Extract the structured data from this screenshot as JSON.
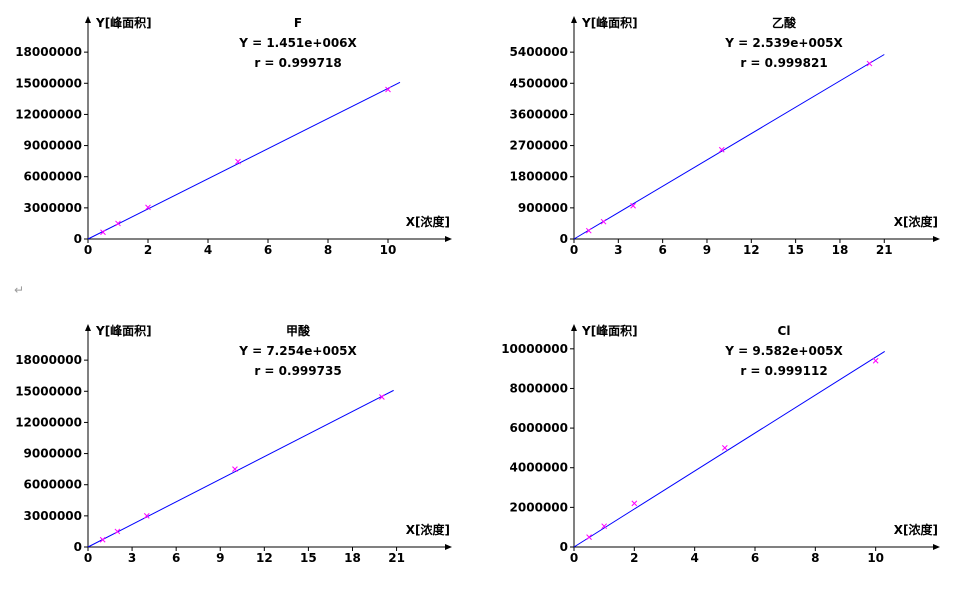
{
  "paragraph_mark": "↵",
  "chart_data": [
    {
      "type": "scatter",
      "title": "F",
      "equation": "Y = 1.451e+006X",
      "r_label": "r = 0.999718",
      "ylabel": "Y[峰面积]",
      "xlabel": "X[浓度]",
      "x_ticks": [
        0,
        2,
        4,
        6,
        8,
        10
      ],
      "y_ticks": [
        0,
        3000000,
        6000000,
        9000000,
        12000000,
        15000000,
        18000000
      ],
      "xlim": [
        0,
        12
      ],
      "ylim": [
        0,
        21000000
      ],
      "slope": 1451000,
      "fit_x": [
        0,
        10.4
      ],
      "series": [
        {
          "x": [
            0.5,
            1,
            2,
            5,
            10
          ],
          "y": [
            650000,
            1500000,
            3050000,
            7450000,
            14400000
          ]
        }
      ],
      "line_color": "#0000ff",
      "marker_color": "#ff00ff"
    },
    {
      "type": "scatter",
      "title": "乙酸",
      "equation": "Y = 2.539e+005X",
      "r_label": "r = 0.999821",
      "ylabel": "Y[峰面积]",
      "xlabel": "X[浓度]",
      "x_ticks": [
        0,
        3,
        6,
        9,
        12,
        15,
        18,
        21
      ],
      "y_ticks": [
        0,
        900000,
        1800000,
        2700000,
        3600000,
        4500000,
        5400000
      ],
      "xlim": [
        0,
        24.5
      ],
      "ylim": [
        0,
        6300000
      ],
      "slope": 253900,
      "fit_x": [
        0,
        21
      ],
      "series": [
        {
          "x": [
            1,
            2,
            4,
            10,
            20
          ],
          "y": [
            240000,
            500000,
            960000,
            2580000,
            5070000
          ]
        }
      ],
      "line_color": "#0000ff",
      "marker_color": "#ff00ff"
    },
    {
      "type": "scatter",
      "title": "甲酸",
      "equation": "Y = 7.254e+005X",
      "r_label": "r = 0.999735",
      "ylabel": "Y[峰面积]",
      "xlabel": "X[浓度]",
      "x_ticks": [
        0,
        3,
        6,
        9,
        12,
        15,
        18,
        21
      ],
      "y_ticks": [
        0,
        3000000,
        6000000,
        9000000,
        12000000,
        15000000,
        18000000
      ],
      "xlim": [
        0,
        24.5
      ],
      "ylim": [
        0,
        21000000
      ],
      "slope": 725400,
      "fit_x": [
        0,
        20.8
      ],
      "series": [
        {
          "x": [
            1,
            2,
            4,
            10,
            20
          ],
          "y": [
            700000,
            1500000,
            3000000,
            7500000,
            14450000
          ]
        }
      ],
      "line_color": "#0000ff",
      "marker_color": "#ff00ff"
    },
    {
      "type": "scatter",
      "title": "Cl",
      "equation": "Y = 9.582e+005X",
      "r_label": "r = 0.999112",
      "ylabel": "Y[峰面积]",
      "xlabel": "X[浓度]",
      "x_ticks": [
        0,
        2,
        4,
        6,
        8,
        10
      ],
      "y_ticks": [
        0,
        2000000,
        4000000,
        6000000,
        8000000,
        10000000
      ],
      "xlim": [
        0,
        12
      ],
      "ylim": [
        0,
        11000000
      ],
      "slope": 958200,
      "fit_x": [
        0,
        10.3
      ],
      "series": [
        {
          "x": [
            0.5,
            1,
            2,
            5,
            10
          ],
          "y": [
            500000,
            1050000,
            2200000,
            5000000,
            9400000
          ]
        }
      ],
      "line_color": "#0000ff",
      "marker_color": "#ff00ff"
    }
  ]
}
